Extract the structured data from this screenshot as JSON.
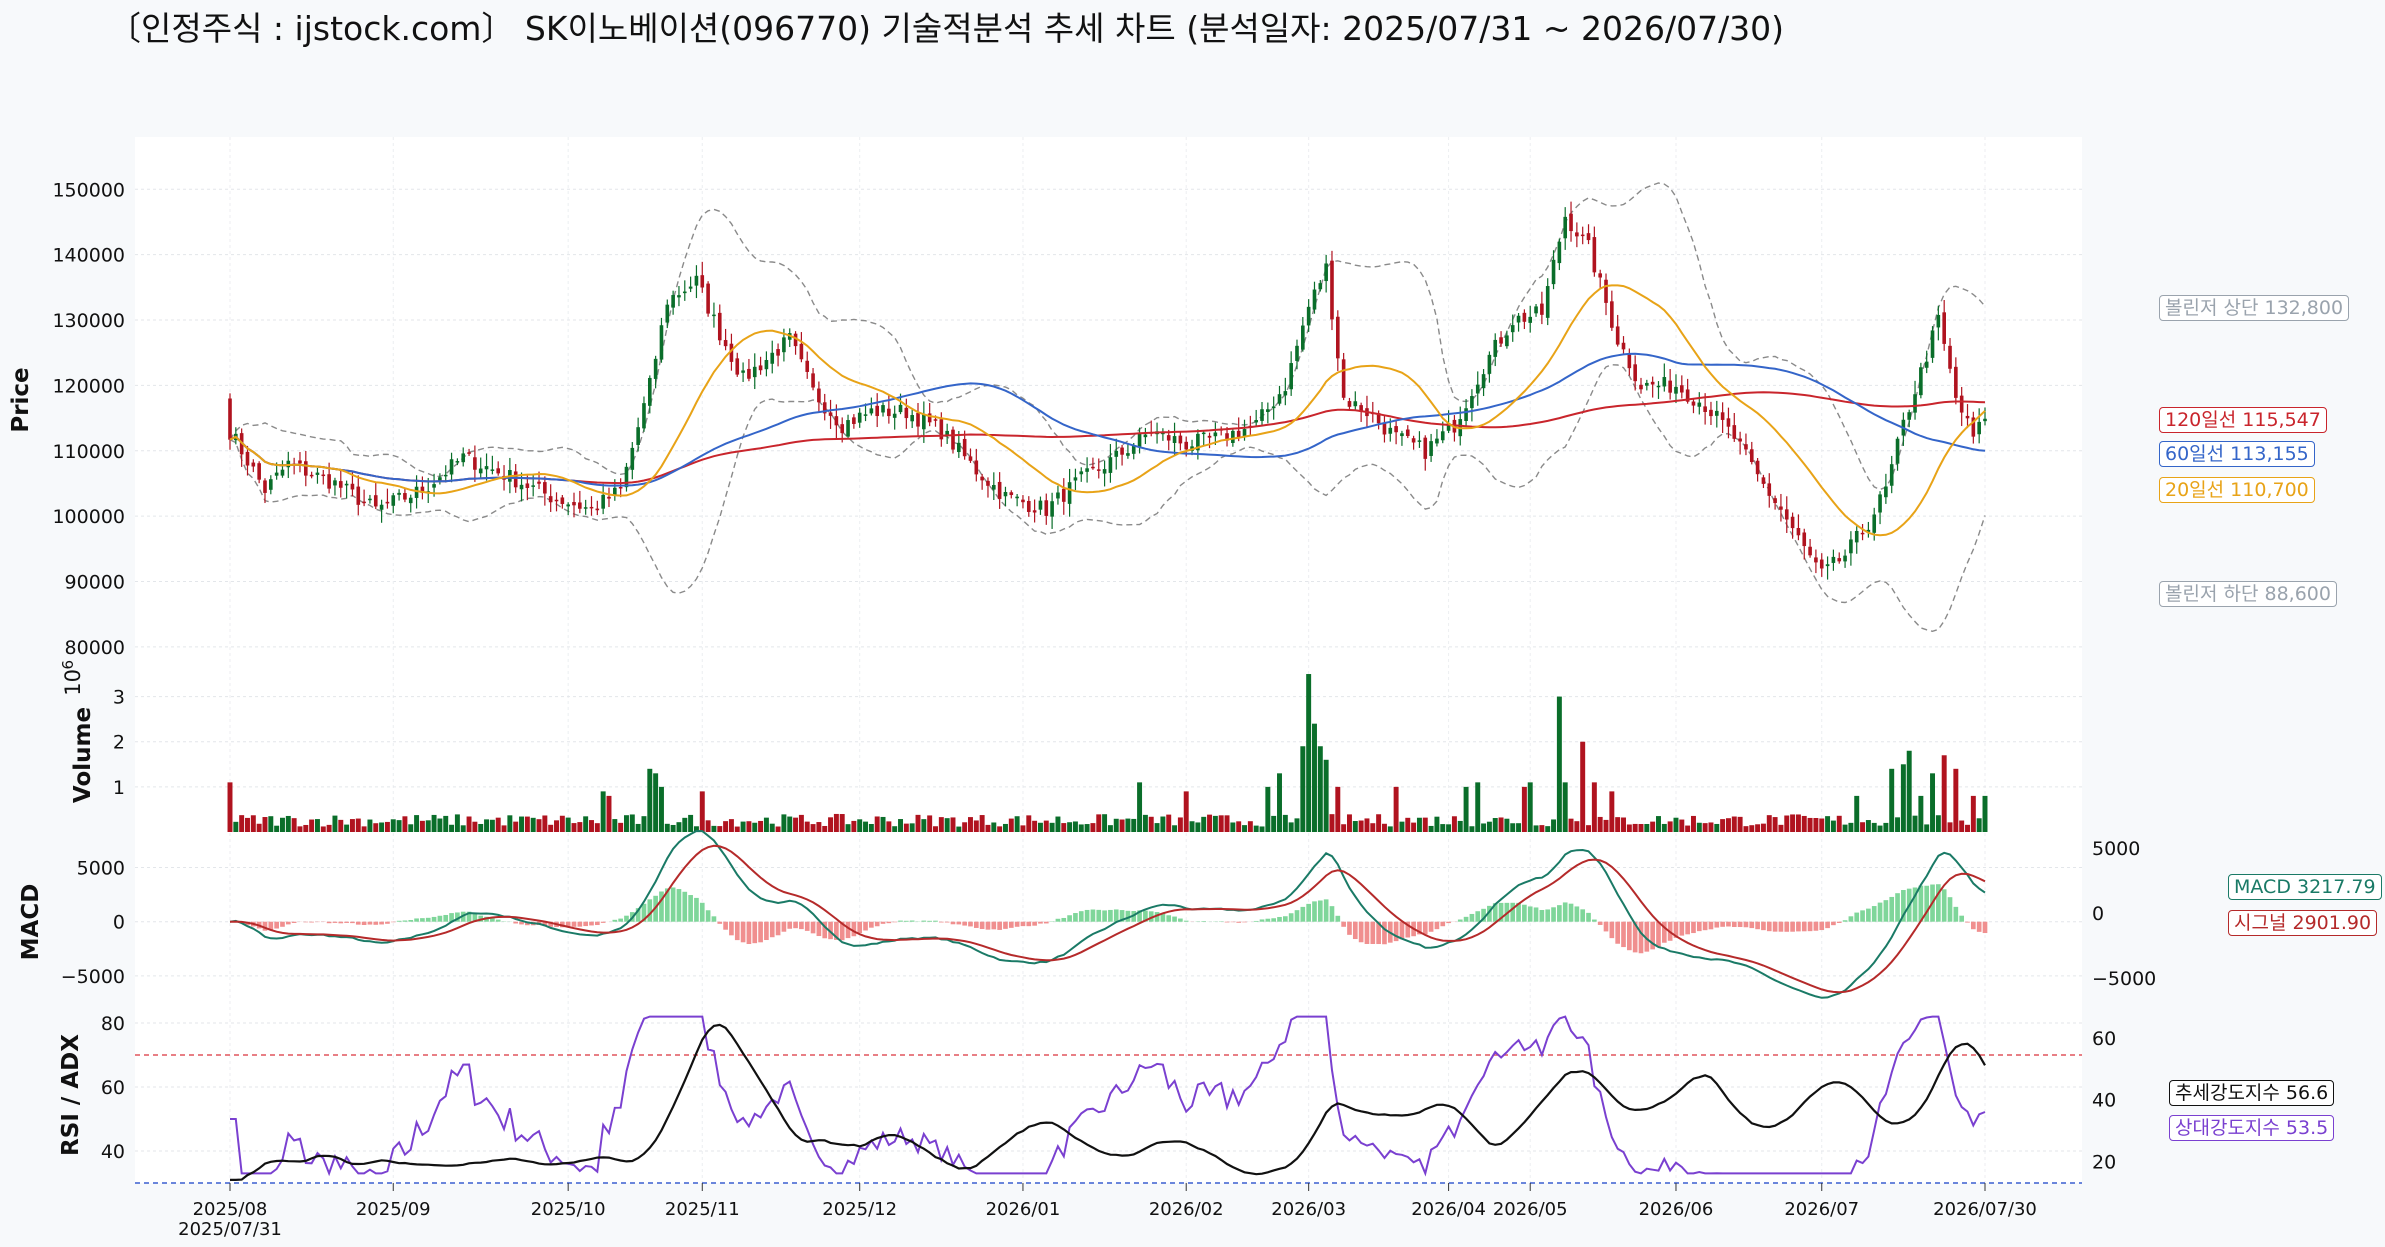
{
  "title": "〔인정주식 : ijstock.com〕 SK이노베이션(096770) 기술적분석 추세 차트 (분석일자: 2025/07/31 ~ 2026/07/30)",
  "colors": {
    "up": "#0a6e2a",
    "down": "#b0131f",
    "ma20": "#e8a317",
    "ma60": "#3465c9",
    "ma120": "#c9252c",
    "bollinger": "#8a8a8a",
    "macd": "#1a7a66",
    "signal": "#b52a2a",
    "hist_up": "#7fd69a",
    "hist_down": "#f08f8f",
    "adx": "#111111",
    "rsi": "#7a40d0",
    "rsi_high": "#e0555d",
    "rsi_low": "#3a5fd0"
  },
  "chart_data": {
    "type": "candlestick-technical",
    "price_panel": {
      "ylabel": "Price",
      "yticks": [
        80000,
        90000,
        100000,
        110000,
        120000,
        130000,
        140000,
        150000
      ],
      "ylim": [
        78000,
        158000
      ],
      "anchor_closes": [
        [
          0,
          113000
        ],
        [
          6,
          104000
        ],
        [
          10,
          108000
        ],
        [
          18,
          105000
        ],
        [
          25,
          101000
        ],
        [
          33,
          104000
        ],
        [
          40,
          109000
        ],
        [
          48,
          106000
        ],
        [
          55,
          103000
        ],
        [
          62,
          101000
        ],
        [
          67,
          104000
        ],
        [
          72,
          120000
        ],
        [
          75,
          133000
        ],
        [
          80,
          136000
        ],
        [
          84,
          128000
        ],
        [
          88,
          121000
        ],
        [
          92,
          124000
        ],
        [
          96,
          127000
        ],
        [
          100,
          119000
        ],
        [
          105,
          114000
        ],
        [
          110,
          116000
        ],
        [
          116,
          116000
        ],
        [
          122,
          113000
        ],
        [
          128,
          107000
        ],
        [
          133,
          103000
        ],
        [
          140,
          101000
        ],
        [
          145,
          105000
        ],
        [
          152,
          109000
        ],
        [
          158,
          113000
        ],
        [
          164,
          111000
        ],
        [
          170,
          112000
        ],
        [
          176,
          114000
        ],
        [
          181,
          120000
        ],
        [
          185,
          132000
        ],
        [
          188,
          138000
        ],
        [
          191,
          118000
        ],
        [
          195,
          116000
        ],
        [
          200,
          112000
        ],
        [
          205,
          110000
        ],
        [
          210,
          114000
        ],
        [
          215,
          123000
        ],
        [
          220,
          130000
        ],
        [
          225,
          131000
        ],
        [
          229,
          146000
        ],
        [
          233,
          141000
        ],
        [
          238,
          127000
        ],
        [
          242,
          120000
        ],
        [
          248,
          120000
        ],
        [
          253,
          117000
        ],
        [
          258,
          112000
        ],
        [
          262,
          106000
        ],
        [
          266,
          101000
        ],
        [
          270,
          95000
        ],
        [
          273,
          91000
        ],
        [
          277,
          94000
        ],
        [
          281,
          99000
        ],
        [
          284,
          104000
        ],
        [
          287,
          114000
        ],
        [
          290,
          122000
        ],
        [
          293,
          130000
        ],
        [
          296,
          118000
        ],
        [
          299,
          112000
        ],
        [
          301,
          114900
        ]
      ]
    },
    "moving_average_labels": {
      "ma120": "120일선 115,547",
      "ma60": "60일선 113,155",
      "ma20": "20일선 110,700"
    },
    "bollinger_labels": {
      "upper": "볼린저 상단 132,800",
      "lower": "볼린저 하단 88,600"
    },
    "volume_panel": {
      "ylabel": "Volume",
      "exponent_base": "10",
      "exponent_power": "6",
      "yticks": [
        1,
        2,
        3
      ],
      "ylim": [
        0,
        3.7
      ],
      "spikes": [
        [
          0,
          1.1
        ],
        [
          64,
          0.9
        ],
        [
          65,
          0.8
        ],
        [
          72,
          1.4
        ],
        [
          73,
          1.3
        ],
        [
          74,
          1.0
        ],
        [
          81,
          0.9
        ],
        [
          156,
          1.1
        ],
        [
          164,
          0.9
        ],
        [
          178,
          1.0
        ],
        [
          180,
          1.3
        ],
        [
          184,
          1.9
        ],
        [
          185,
          3.5
        ],
        [
          186,
          2.4
        ],
        [
          187,
          1.9
        ],
        [
          188,
          1.6
        ],
        [
          190,
          1.0
        ],
        [
          200,
          1.0
        ],
        [
          212,
          1.0
        ],
        [
          214,
          1.1
        ],
        [
          222,
          1.0
        ],
        [
          223,
          1.1
        ],
        [
          228,
          3.0
        ],
        [
          229,
          1.1
        ],
        [
          232,
          2.0
        ],
        [
          234,
          1.1
        ],
        [
          237,
          0.9
        ],
        [
          279,
          0.8
        ],
        [
          285,
          1.4
        ],
        [
          287,
          1.5
        ],
        [
          288,
          1.8
        ],
        [
          290,
          0.8
        ],
        [
          292,
          1.3
        ],
        [
          294,
          1.7
        ],
        [
          296,
          1.4
        ],
        [
          299,
          0.8
        ],
        [
          301,
          0.8
        ]
      ]
    },
    "macd_panel": {
      "ylabel": "MACD",
      "left_yticks": [
        -5000,
        0,
        5000
      ],
      "right_yticks": [
        -5000,
        0,
        5000
      ],
      "ylim": [
        -7500,
        8000
      ],
      "macd_label": "MACD 3217.79",
      "signal_label": "시그널 2901.90"
    },
    "rsi_adx_panel": {
      "ylabel": "RSI / ADX",
      "left_yticks": [
        40,
        60,
        80
      ],
      "right_yticks": [
        20,
        40,
        60
      ],
      "rsi_ylim": [
        30,
        85
      ],
      "adx_ylim": [
        13,
        70
      ],
      "rsi_overbought": 70,
      "rsi_oversold": 30,
      "adx_label": "추세강도지수 56.6",
      "rsi_label": "상대강도지수 53.5"
    },
    "x_axis": {
      "ticks": [
        {
          "i": 0,
          "label": "2025/08"
        },
        {
          "i": 28,
          "label": "2025/09"
        },
        {
          "i": 58,
          "label": "2025/10"
        },
        {
          "i": 81,
          "label": "2025/11"
        },
        {
          "i": 108,
          "label": "2025/12"
        },
        {
          "i": 136,
          "label": "2026/01"
        },
        {
          "i": 164,
          "label": "2026/02"
        },
        {
          "i": 185,
          "label": "2026/03"
        },
        {
          "i": 209,
          "label": "2026/04"
        },
        {
          "i": 223,
          "label": "2026/05"
        },
        {
          "i": 248,
          "label": "2026/06"
        },
        {
          "i": 273,
          "label": "2026/07"
        },
        {
          "i": 301,
          "label": "2026/07/30"
        }
      ],
      "start_label": "2025/07/31",
      "count": 302
    }
  }
}
